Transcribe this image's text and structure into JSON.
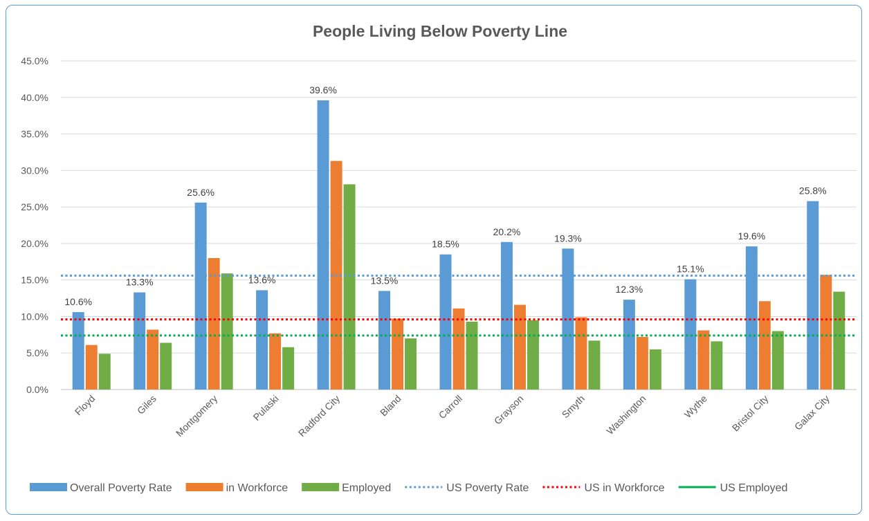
{
  "chart_data": {
    "type": "bar",
    "title": "People Living Below Poverty Line",
    "xlabel": "",
    "ylabel": "",
    "ylim": [
      0,
      45
    ],
    "y_ticks": [
      "0.0%",
      "5.0%",
      "10.0%",
      "15.0%",
      "20.0%",
      "25.0%",
      "30.0%",
      "35.0%",
      "40.0%",
      "45.0%"
    ],
    "grid": true,
    "legend_position": "bottom",
    "categories": [
      "Floyd",
      "Giles",
      "Montgomery",
      "Pulaski",
      "Radford City",
      "Bland",
      "Carroll",
      "Grayson",
      "Smyth",
      "Washington",
      "Wythe",
      "Bristol City",
      "Galax City"
    ],
    "series": [
      {
        "name": "Overall Poverty Rate",
        "color": "#5b9bd5",
        "values": [
          10.6,
          13.3,
          25.6,
          13.6,
          39.6,
          13.5,
          18.5,
          20.2,
          19.3,
          12.3,
          15.1,
          19.6,
          25.8
        ],
        "labels": [
          "10.6%",
          "13.3%",
          "25.6%",
          "13.6%",
          "39.6%",
          "13.5%",
          "18.5%",
          "20.2%",
          "19.3%",
          "12.3%",
          "15.1%",
          "19.6%",
          "25.8%"
        ]
      },
      {
        "name": "in Workforce",
        "color": "#ed7d31",
        "values": [
          6.1,
          8.2,
          18.0,
          7.7,
          31.3,
          9.7,
          11.1,
          11.6,
          9.9,
          7.2,
          8.1,
          12.1,
          15.7
        ]
      },
      {
        "name": "Employed",
        "color": "#70ad47",
        "values": [
          4.9,
          6.4,
          15.9,
          5.8,
          28.1,
          7.0,
          9.3,
          9.5,
          6.7,
          5.5,
          6.6,
          8.0,
          13.4
        ]
      }
    ],
    "reference_lines": [
      {
        "name": "US Poverty Rate",
        "value": 15.6,
        "color": "#5b9bd5",
        "style": "dotted"
      },
      {
        "name": "US in Workforce",
        "value": 9.6,
        "color": "#ff0000",
        "style": "dotted"
      },
      {
        "name": "US Employed",
        "value": 7.4,
        "color": "#00b050",
        "style": "dotted",
        "legend_style": "solid"
      }
    ]
  }
}
